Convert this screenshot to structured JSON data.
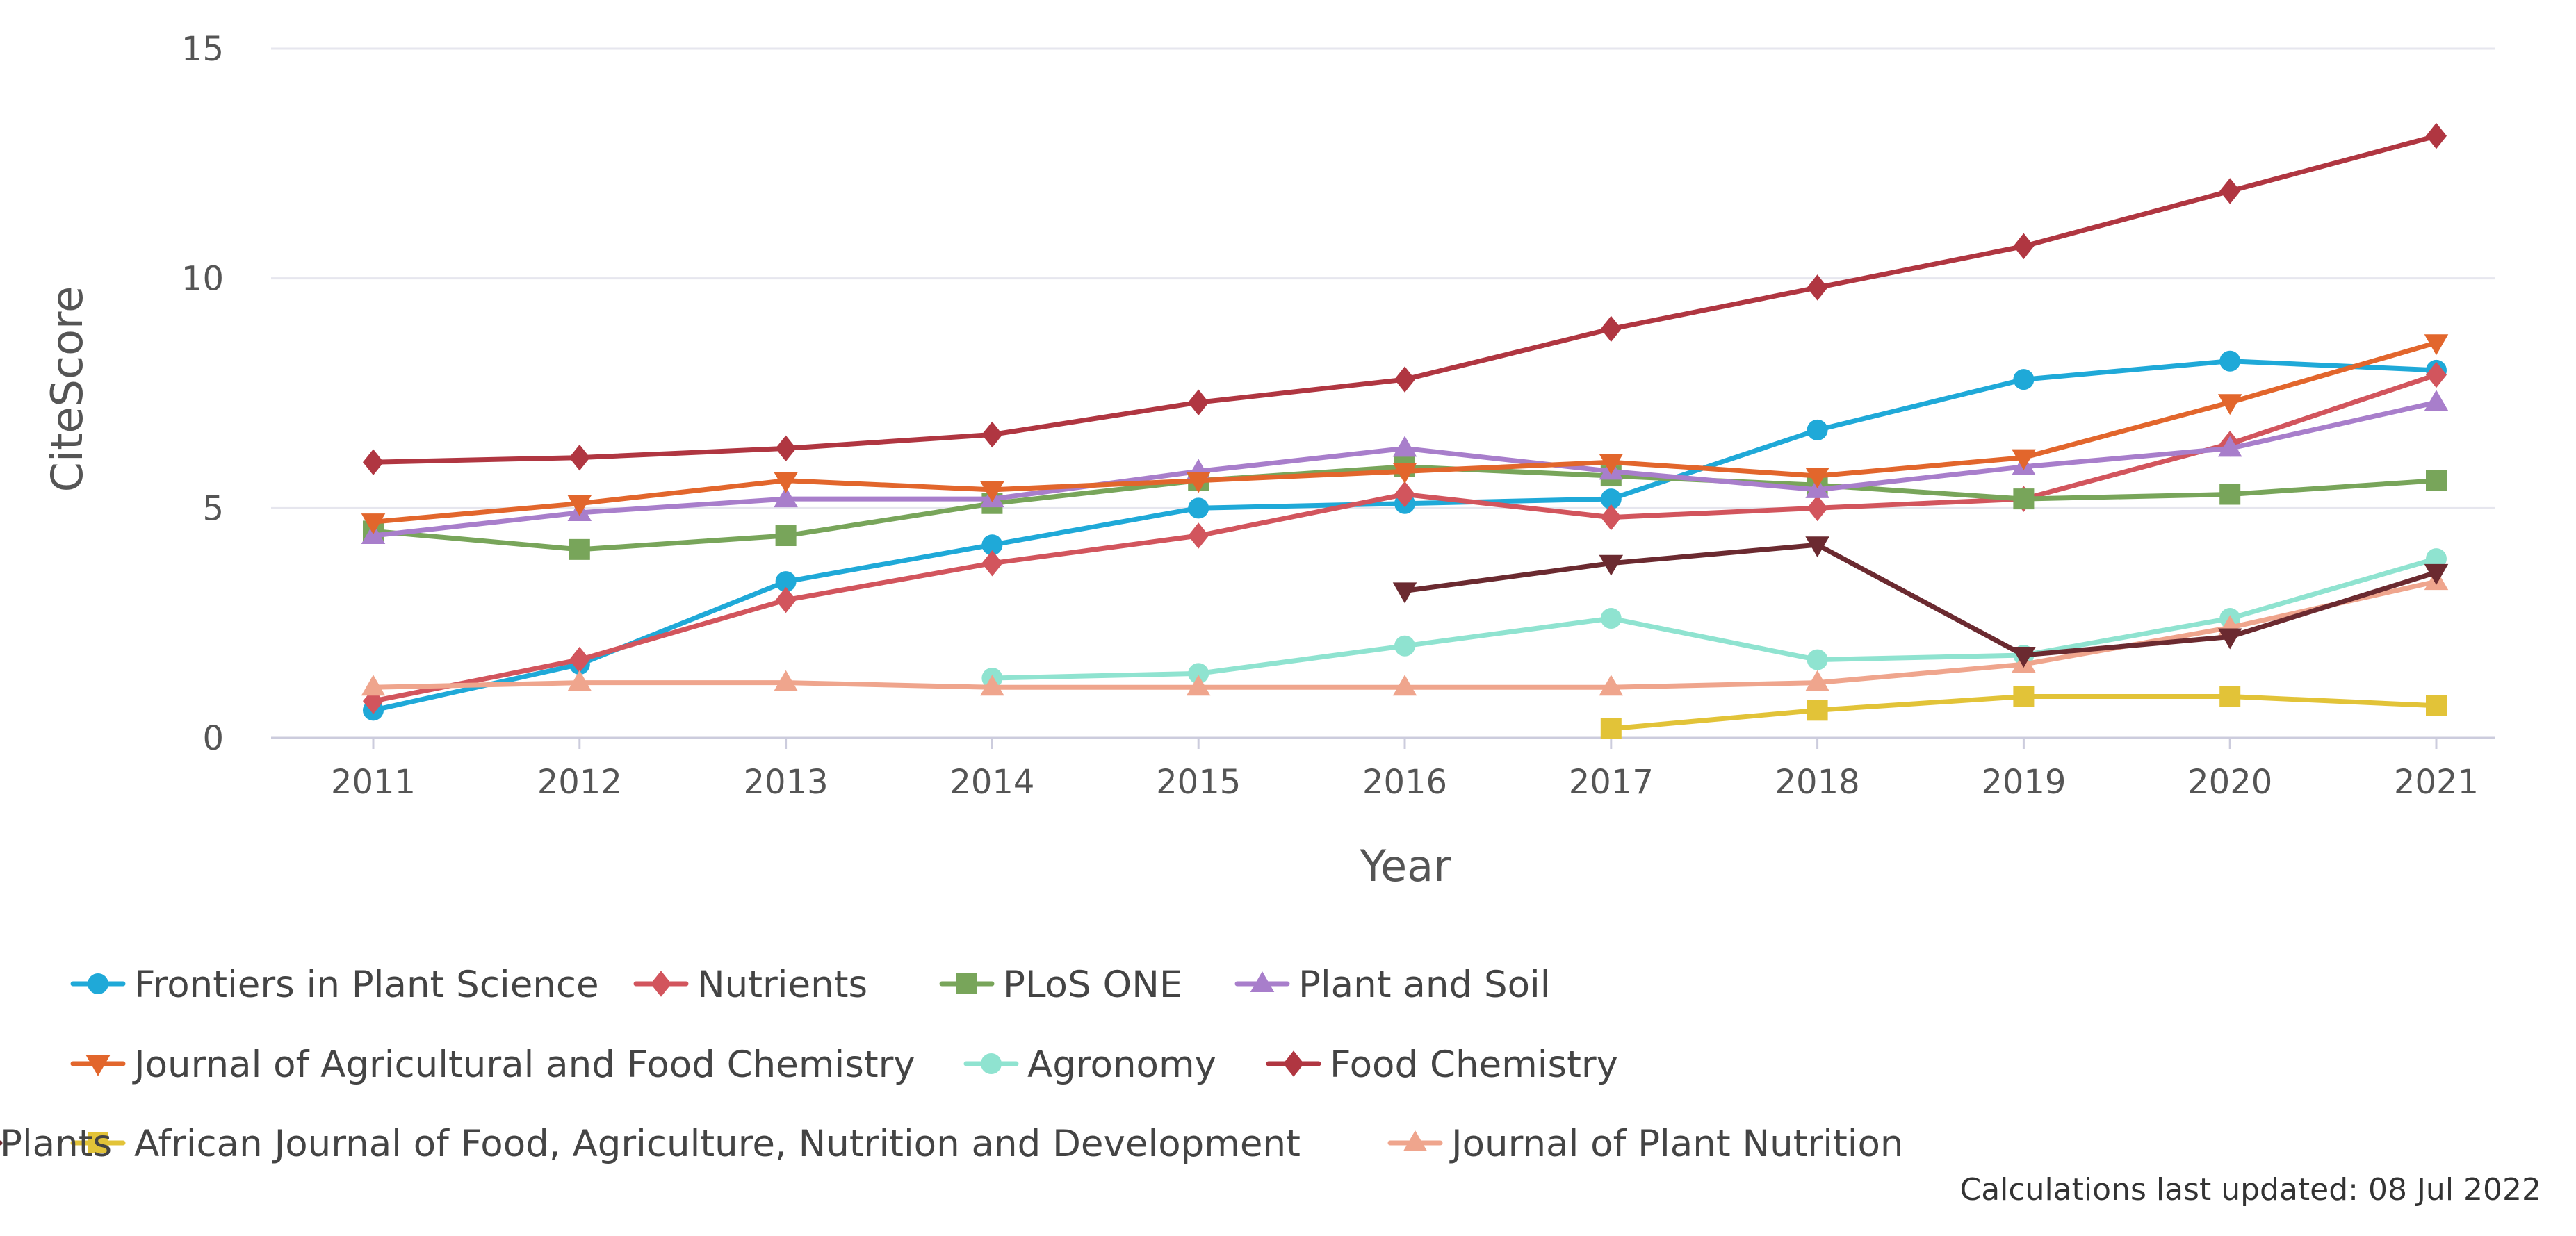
{
  "chart_data": {
    "type": "line",
    "xlabel": "Year",
    "ylabel": "CiteScore",
    "x": [
      "2011",
      "2012",
      "2013",
      "2014",
      "2015",
      "2016",
      "2017",
      "2018",
      "2019",
      "2020",
      "2021"
    ],
    "ylim": [
      0,
      15
    ],
    "yticks": [
      0,
      5,
      10,
      15
    ],
    "grid": true,
    "legend_position": "bottom",
    "series": [
      {
        "name": "Frontiers in Plant Science",
        "color": "#1fa9d8",
        "marker": "circle",
        "values": [
          0.6,
          1.6,
          3.4,
          4.2,
          5.0,
          5.1,
          5.2,
          6.7,
          7.8,
          8.2,
          8.0
        ]
      },
      {
        "name": "Nutrients",
        "color": "#d2555d",
        "marker": "diamond",
        "values": [
          0.8,
          1.7,
          3.0,
          3.8,
          4.4,
          5.3,
          4.8,
          5.0,
          5.2,
          6.4,
          7.9
        ]
      },
      {
        "name": "PLoS ONE",
        "color": "#78a55a",
        "marker": "square",
        "values": [
          4.5,
          4.1,
          4.4,
          5.1,
          5.6,
          5.9,
          5.7,
          5.5,
          5.2,
          5.3,
          5.6
        ]
      },
      {
        "name": "Plant and Soil",
        "color": "#a87ecb",
        "marker": "triangle-up",
        "values": [
          4.4,
          4.9,
          5.2,
          5.2,
          5.8,
          6.3,
          5.8,
          5.4,
          5.9,
          6.3,
          7.3
        ]
      },
      {
        "name": "Journal of Agricultural and Food Chemistry",
        "color": "#e2662c",
        "marker": "triangle-down",
        "values": [
          4.7,
          5.1,
          5.6,
          5.4,
          5.6,
          5.8,
          6.0,
          5.7,
          6.1,
          7.3,
          8.6
        ]
      },
      {
        "name": "Agronomy",
        "color": "#8fe3d0",
        "marker": "circle",
        "values": [
          null,
          null,
          null,
          1.3,
          1.4,
          2.0,
          2.6,
          1.7,
          1.8,
          2.6,
          3.9
        ]
      },
      {
        "name": "Food Chemistry",
        "color": "#b03641",
        "marker": "diamond",
        "values": [
          6.0,
          6.1,
          6.3,
          6.6,
          7.3,
          7.8,
          8.9,
          9.8,
          10.7,
          11.9,
          13.1
        ]
      },
      {
        "name": "African Journal of Food, Agriculture, Nutrition and Development",
        "color": "#e2c338",
        "marker": "square",
        "values": [
          null,
          null,
          null,
          null,
          null,
          null,
          0.2,
          0.6,
          0.9,
          0.9,
          0.7
        ]
      },
      {
        "name": "Journal of Plant Nutrition",
        "color": "#efa58d",
        "marker": "triangle-up",
        "values": [
          1.1,
          1.2,
          1.2,
          1.1,
          1.1,
          1.1,
          1.1,
          1.2,
          1.6,
          2.4,
          3.4
        ]
      },
      {
        "name": "Plants",
        "color": "#6b2a30",
        "marker": "triangle-down",
        "values": [
          null,
          null,
          null,
          null,
          null,
          3.2,
          3.8,
          4.2,
          1.8,
          2.2,
          3.6
        ]
      }
    ]
  },
  "footnote": "Calculations last updated: 08 Jul 2022",
  "colors": {
    "grid": "#e6e6ee",
    "axis_line": "#ccccdd",
    "tick_text": "#555555"
  }
}
